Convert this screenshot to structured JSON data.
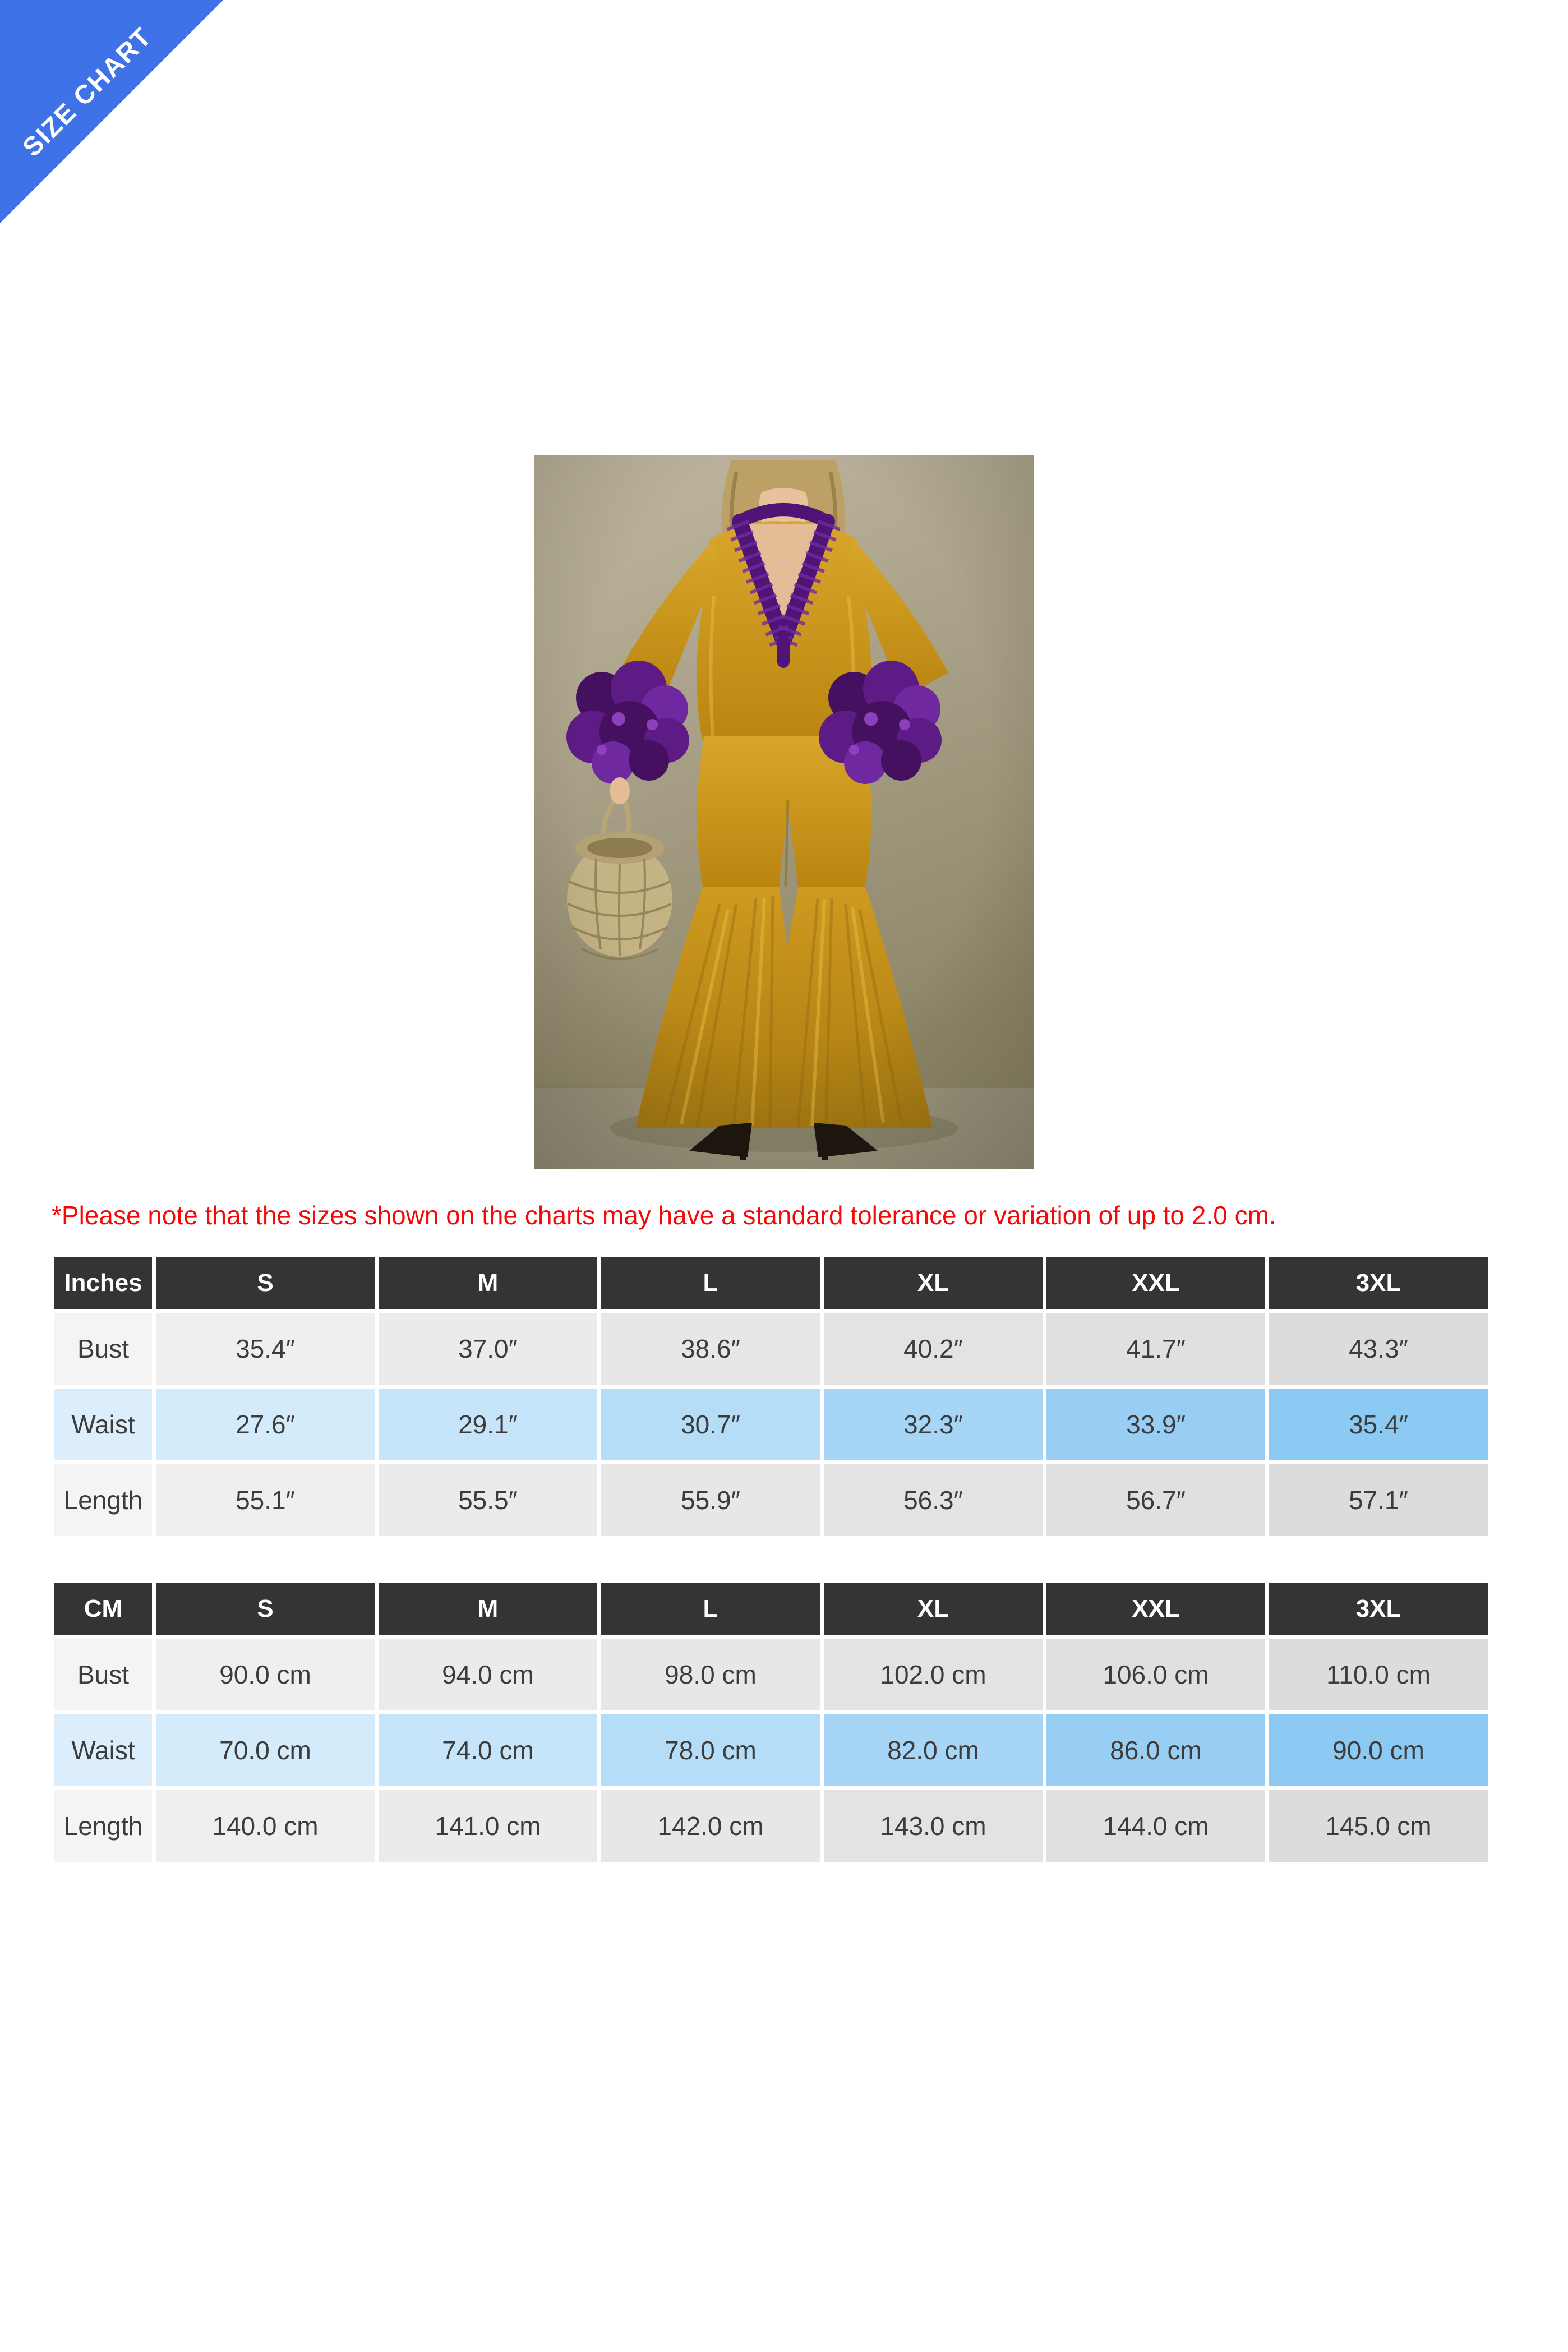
{
  "banner": {
    "label": "SIZE CHART"
  },
  "note": {
    "text": "*Please note that the sizes shown on the charts may have a standard tolerance or variation of up to 2.0 cm."
  },
  "product_image": {
    "description": "Model with wavy blonde hair wearing a mustard-gold velvet jumpsuit with deep V-neck, purple ruffle trim, oversized purple ruffle cuffs and pleated bell-bottom flares, holding a woven wicker basket, black pointed heels, beige studio wall"
  },
  "colors": {
    "banner_blue": "#3e72e6",
    "note_red": "#f70808",
    "header_dark": "#343434",
    "row_blue_light": "#dceefc",
    "row_blue_deep": "#8ccaf3",
    "row_gray": "#e7e7e7"
  },
  "tables": [
    {
      "unit_label": "Inches",
      "columns": [
        "S",
        "M",
        "L",
        "XL",
        "XXL",
        "3XL"
      ],
      "rows": [
        {
          "label": "Bust",
          "highlight": false,
          "values": [
            "35.4″",
            "37.0″",
            "38.6″",
            "40.2″",
            "41.7″",
            "43.3″"
          ]
        },
        {
          "label": "Waist",
          "highlight": true,
          "values": [
            "27.6″",
            "29.1″",
            "30.7″",
            "32.3″",
            "33.9″",
            "35.4″"
          ]
        },
        {
          "label": "Length",
          "highlight": false,
          "values": [
            "55.1″",
            "55.5″",
            "55.9″",
            "56.3″",
            "56.7″",
            "57.1″"
          ]
        }
      ]
    },
    {
      "unit_label": "CM",
      "columns": [
        "S",
        "M",
        "L",
        "XL",
        "XXL",
        "3XL"
      ],
      "rows": [
        {
          "label": "Bust",
          "highlight": false,
          "values": [
            "90.0 cm",
            "94.0 cm",
            "98.0 cm",
            "102.0 cm",
            "106.0 cm",
            "110.0 cm"
          ]
        },
        {
          "label": "Waist",
          "highlight": true,
          "values": [
            "70.0 cm",
            "74.0 cm",
            "78.0 cm",
            "82.0 cm",
            "86.0 cm",
            "90.0 cm"
          ]
        },
        {
          "label": "Length",
          "highlight": false,
          "values": [
            "140.0 cm",
            "141.0 cm",
            "142.0 cm",
            "143.0 cm",
            "144.0 cm",
            "145.0 cm"
          ]
        }
      ]
    }
  ]
}
